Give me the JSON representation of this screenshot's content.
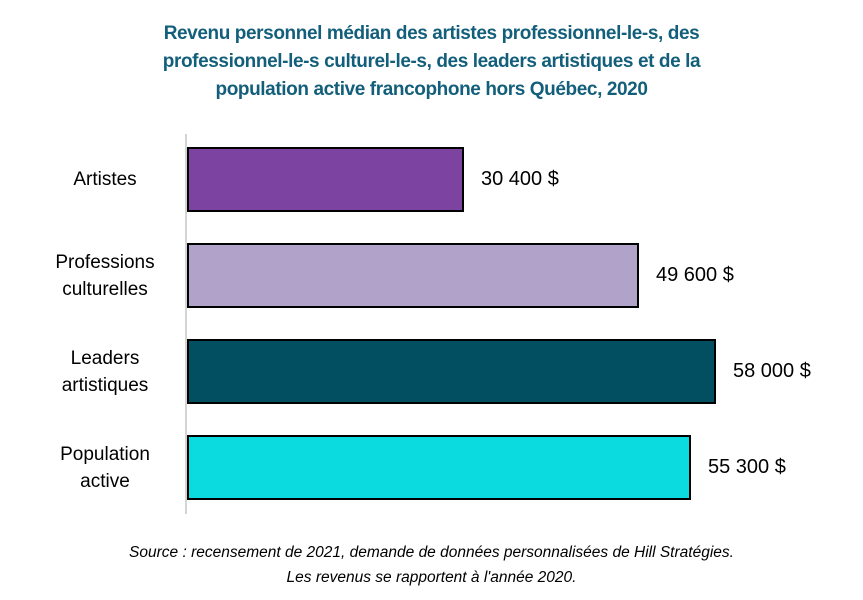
{
  "title_lines": [
    "Revenu personnel médian des artistes professionnel-le-s, des",
    "professionnel-le-s culturel-le-s, des leaders artistiques et de la",
    "population active francophone hors Québec, 2020"
  ],
  "source_lines": [
    "Source : recensement de 2021, demande de données personnalisées de Hill Stratégies.",
    "Les revenus se rapportent à l'année 2020."
  ],
  "colors": {
    "title_text": "#135f7b",
    "label_text": "#000000",
    "axis_line": "#d4d4d4",
    "bar_border": "#000000",
    "background": "#ffffff"
  },
  "chart_data": {
    "type": "bar",
    "orientation": "horizontal",
    "title": "Revenu personnel médian des artistes professionnel-le-s, des professionnel-le-s culturel-le-s, des leaders artistiques et de la population active francophone hors Québec, 2020",
    "categories": [
      "Artistes",
      "Professions culturelles",
      "Leaders artistiques",
      "Population active"
    ],
    "values": [
      30400,
      49600,
      58000,
      55300
    ],
    "value_labels": [
      "30 400 $",
      "49 600 $",
      "58 000 $",
      "55 300 $"
    ],
    "bar_colors": [
      "#7c43a0",
      "#b1a2ca",
      "#024f62",
      "#0bdade"
    ],
    "unit": "$",
    "xlabel": "",
    "ylabel": "",
    "xlim": [
      0,
      62000
    ],
    "grid": false,
    "legend": false,
    "data_labels_position": "outside-end",
    "source": "Source : recensement de 2021, demande de données personnalisées de Hill Stratégies. Les revenus se rapportent à l'année 2020."
  }
}
